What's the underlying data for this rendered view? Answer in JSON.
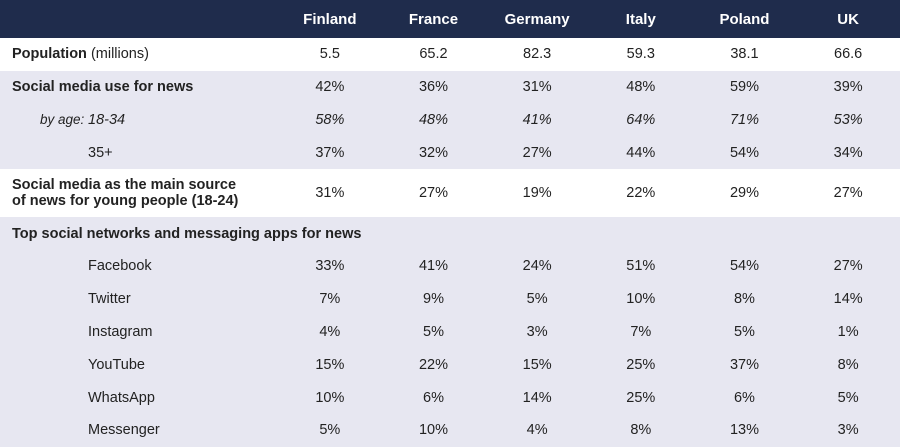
{
  "table": {
    "columns": [
      "Finland",
      "France",
      "Germany",
      "Italy",
      "Poland",
      "UK"
    ],
    "rows": [
      {
        "label": "Population",
        "unit": "(millions)",
        "values": [
          "5.5",
          "65.2",
          "82.3",
          "59.3",
          "38.1",
          "66.6"
        ]
      },
      {
        "label": "Social media use for news",
        "values": [
          "42%",
          "36%",
          "31%",
          "48%",
          "59%",
          "39%"
        ]
      },
      {
        "prefix": "by age:",
        "label": "18-34",
        "values": [
          "58%",
          "48%",
          "41%",
          "64%",
          "71%",
          "53%"
        ]
      },
      {
        "label": "35+",
        "values": [
          "37%",
          "32%",
          "27%",
          "44%",
          "54%",
          "34%"
        ]
      },
      {
        "label": "Social media as the main source of news for young people (18-24)",
        "values": [
          "31%",
          "27%",
          "19%",
          "22%",
          "29%",
          "27%"
        ]
      },
      {
        "label": "Top social networks and messaging apps for news"
      },
      {
        "label": "Facebook",
        "values": [
          "33%",
          "41%",
          "24%",
          "51%",
          "54%",
          "27%"
        ]
      },
      {
        "label": "Twitter",
        "values": [
          "7%",
          "9%",
          "5%",
          "10%",
          "8%",
          "14%"
        ]
      },
      {
        "label": "Instagram",
        "values": [
          "4%",
          "5%",
          "3%",
          "7%",
          "5%",
          "1%"
        ]
      },
      {
        "label": "YouTube",
        "values": [
          "15%",
          "22%",
          "15%",
          "25%",
          "37%",
          "8%"
        ]
      },
      {
        "label": "WhatsApp",
        "values": [
          "10%",
          "6%",
          "14%",
          "25%",
          "6%",
          "5%"
        ]
      },
      {
        "label": "Messenger",
        "values": [
          "5%",
          "10%",
          "4%",
          "8%",
          "13%",
          "3%"
        ]
      }
    ]
  }
}
